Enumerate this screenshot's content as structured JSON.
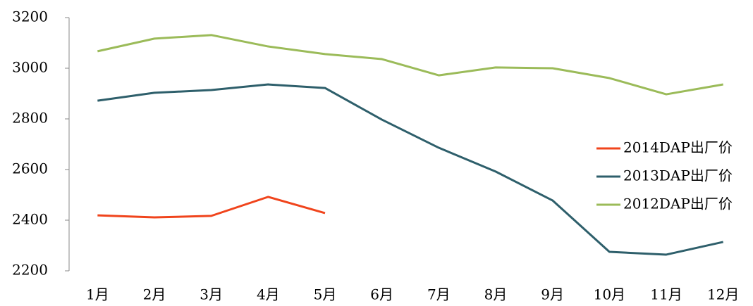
{
  "chart_data": {
    "type": "line",
    "categories": [
      "1月",
      "2月",
      "3月",
      "4月",
      "5月",
      "6月",
      "7月",
      "8月",
      "9月",
      "10月",
      "11月",
      "12月"
    ],
    "series": [
      {
        "name": "2014DAP出厂价",
        "color": "#f0441c",
        "values": [
          2419,
          2411,
          2417,
          2492,
          2428,
          null,
          null,
          null,
          null,
          null,
          null,
          null
        ]
      },
      {
        "name": "2013DAP出厂价",
        "color": "#2e5f6b",
        "values": [
          2872,
          2903,
          2914,
          2936,
          2922,
          2797,
          2686,
          2592,
          2478,
          2275,
          2264,
          2314
        ]
      },
      {
        "name": "2012DAP出厂价",
        "color": "#9bbb59",
        "values": [
          3067,
          3117,
          3131,
          3086,
          3056,
          3036,
          2972,
          3003,
          3000,
          2961,
          2897,
          2936
        ]
      }
    ],
    "ylim": [
      2200,
      3200
    ],
    "yticks": [
      2200,
      2400,
      2600,
      2800,
      3000,
      3200
    ],
    "legend": "right"
  }
}
